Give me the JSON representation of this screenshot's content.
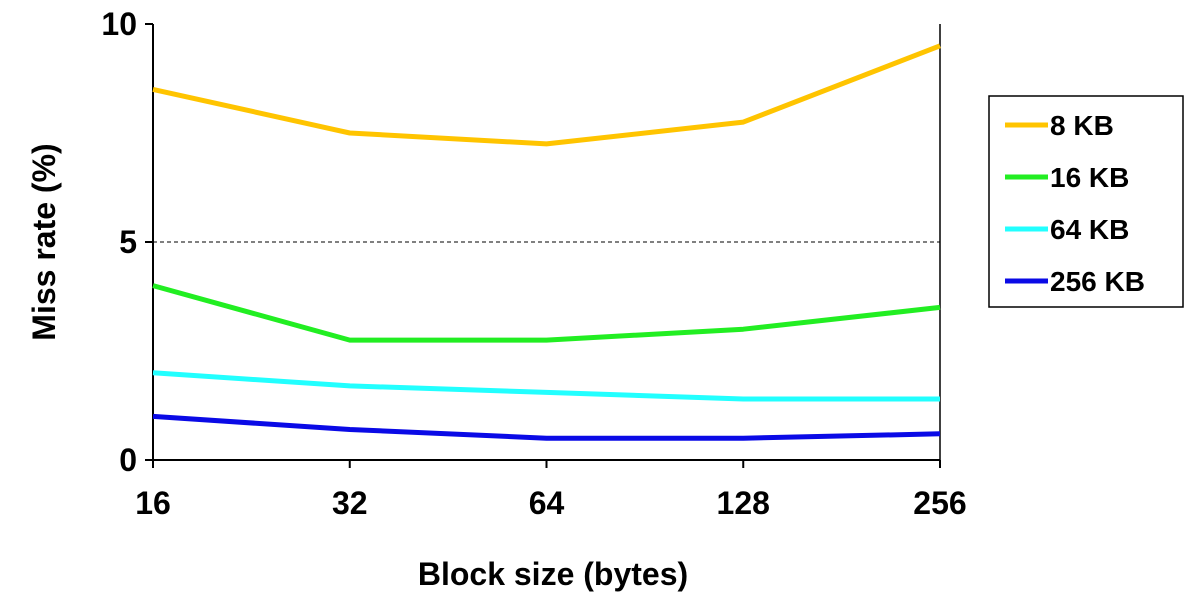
{
  "chart_data": {
    "type": "line",
    "xlabel": "Block size (bytes)",
    "ylabel": "Miss rate (%)",
    "categories": [
      "16",
      "32",
      "64",
      "128",
      "256"
    ],
    "y_ticks": [
      "0",
      "5",
      "10"
    ],
    "ylim": [
      0,
      10
    ],
    "gridlines": [
      5
    ],
    "legend_position": "right",
    "series": [
      {
        "name": "8 KB",
        "color": "#FFC400",
        "values": [
          8.5,
          7.5,
          7.25,
          7.75,
          9.5
        ]
      },
      {
        "name": "16 KB",
        "color": "#22EE22",
        "values": [
          4.0,
          2.75,
          2.75,
          3.0,
          3.5
        ]
      },
      {
        "name": "64 KB",
        "color": "#22FFFF",
        "values": [
          2.0,
          1.7,
          1.55,
          1.4,
          1.4
        ]
      },
      {
        "name": "256 KB",
        "color": "#0A0AE6",
        "values": [
          1.0,
          0.7,
          0.5,
          0.5,
          0.6
        ]
      }
    ]
  }
}
